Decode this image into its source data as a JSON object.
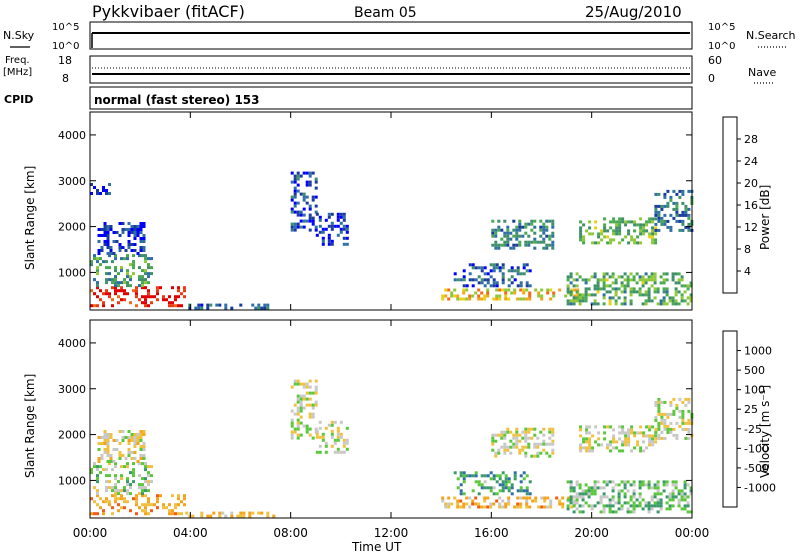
{
  "header": {
    "station": "Pykkvibaer (fitACF)",
    "beam": "Beam 05",
    "date": "25/Aug/2010"
  },
  "nsky_panel": {
    "left_label": "N.Sky",
    "right_label": "N.Search",
    "left_ticks": [
      "10^5",
      "10^0"
    ],
    "right_ticks": [
      "10^5",
      "10^0"
    ]
  },
  "freq_panel": {
    "left_label_top": "Freq.",
    "left_label_unit": "[MHz]",
    "right_label": "Nave",
    "left_ticks": [
      "18",
      "8"
    ],
    "right_ticks": [
      "60",
      "0"
    ]
  },
  "cpid_panel": {
    "label": "CPID",
    "program": "normal (fast stereo) 153"
  },
  "chart_data": [
    {
      "type": "heatmap",
      "title": "Power",
      "ylabel": "Slant Range [km]",
      "xlabel": "Time UT",
      "ylim": [
        180,
        4500
      ],
      "xlim": [
        0,
        24
      ],
      "y_ticks": [
        "1000",
        "2000",
        "3000",
        "4000"
      ],
      "x_ticks": [
        "00:00",
        "04:00",
        "08:00",
        "12:00",
        "16:00",
        "20:00",
        "00:00"
      ],
      "colorbar": {
        "label": "Power [dB]",
        "ticks": [
          "28",
          "24",
          "20",
          "16",
          "12",
          "8",
          "4"
        ],
        "colors": [
          "#0000ff",
          "#1a3c9c",
          "#2f6fa6",
          "#3f8f6a",
          "#4aaa52",
          "#8fc93a",
          "#e6d21a",
          "#f5a31b",
          "#f36b17",
          "#ee3a12",
          "#e00000"
        ]
      },
      "regions": [
        {
          "t0": 0.0,
          "t1": 3.8,
          "r0": 300,
          "r1": 700,
          "level": 0.92
        },
        {
          "t0": 0.0,
          "t1": 2.4,
          "r0": 700,
          "r1": 1400,
          "level": 0.35
        },
        {
          "t0": 0.3,
          "t1": 2.2,
          "r0": 1400,
          "r1": 2100,
          "level": 0.12
        },
        {
          "t0": 0.0,
          "t1": 0.8,
          "r0": 2750,
          "r1": 2950,
          "level": 0.05
        },
        {
          "t0": 3.8,
          "t1": 7.5,
          "r0": 200,
          "r1": 320,
          "level": 0.2
        },
        {
          "t0": 8.0,
          "t1": 9.0,
          "r0": 1900,
          "r1": 3200,
          "level": 0.15
        },
        {
          "t0": 9.0,
          "t1": 10.3,
          "r0": 1600,
          "r1": 2300,
          "level": 0.12
        },
        {
          "t0": 14.0,
          "t1": 19.5,
          "r0": 400,
          "r1": 650,
          "level": 0.62
        },
        {
          "t0": 14.5,
          "t1": 17.5,
          "r0": 700,
          "r1": 1200,
          "level": 0.18
        },
        {
          "t0": 16.0,
          "t1": 18.5,
          "r0": 1550,
          "r1": 2150,
          "level": 0.3
        },
        {
          "t0": 19.5,
          "t1": 22.5,
          "r0": 1650,
          "r1": 2200,
          "level": 0.42
        },
        {
          "t0": 22.5,
          "t1": 24.0,
          "r0": 1900,
          "r1": 2800,
          "level": 0.25
        },
        {
          "t0": 19.0,
          "t1": 24.0,
          "r0": 300,
          "r1": 1000,
          "level": 0.4
        }
      ]
    },
    {
      "type": "heatmap",
      "title": "Velocity",
      "ylabel": "Slant Range [km]",
      "xlabel": "Time UT",
      "ylim": [
        180,
        4500
      ],
      "xlim": [
        0,
        24
      ],
      "y_ticks": [
        "1000",
        "2000",
        "3000",
        "4000"
      ],
      "x_ticks": [
        "00:00",
        "04:00",
        "08:00",
        "12:00",
        "16:00",
        "20:00",
        "00:00"
      ],
      "colorbar": {
        "label": "Velocity [m s⁻¹]",
        "ticks": [
          "1000",
          "500",
          "100",
          "25",
          "-25",
          "-100",
          "-500",
          "-1000"
        ],
        "colors": [
          "#ff0000",
          "#f25a17",
          "#f5a31b",
          "#f0c040",
          "#c8c8c8",
          "#5ac83a",
          "#3a9a6a",
          "#2f6fa6",
          "#1a3c9c"
        ]
      },
      "regions": [
        {
          "t0": 0.0,
          "t1": 3.8,
          "r0": 300,
          "r1": 700,
          "level": 0.3
        },
        {
          "t0": 0.0,
          "t1": 2.4,
          "r0": 700,
          "r1": 1400,
          "level": 0.55
        },
        {
          "t0": 0.3,
          "t1": 2.2,
          "r0": 1400,
          "r1": 2100,
          "level": 0.45
        },
        {
          "t0": 3.8,
          "t1": 7.5,
          "r0": 200,
          "r1": 320,
          "level": 0.35
        },
        {
          "t0": 8.0,
          "t1": 9.0,
          "r0": 1900,
          "r1": 3200,
          "level": 0.5
        },
        {
          "t0": 9.0,
          "t1": 10.3,
          "r0": 1600,
          "r1": 2300,
          "level": 0.52
        },
        {
          "t0": 14.0,
          "t1": 19.5,
          "r0": 400,
          "r1": 650,
          "level": 0.35
        },
        {
          "t0": 14.5,
          "t1": 17.5,
          "r0": 700,
          "r1": 1200,
          "level": 0.7
        },
        {
          "t0": 16.0,
          "t1": 18.5,
          "r0": 1550,
          "r1": 2150,
          "level": 0.5
        },
        {
          "t0": 19.5,
          "t1": 22.5,
          "r0": 1650,
          "r1": 2200,
          "level": 0.5
        },
        {
          "t0": 22.5,
          "t1": 24.0,
          "r0": 1900,
          "r1": 2800,
          "level": 0.5
        },
        {
          "t0": 19.0,
          "t1": 24.0,
          "r0": 300,
          "r1": 1000,
          "level": 0.62
        }
      ]
    }
  ]
}
